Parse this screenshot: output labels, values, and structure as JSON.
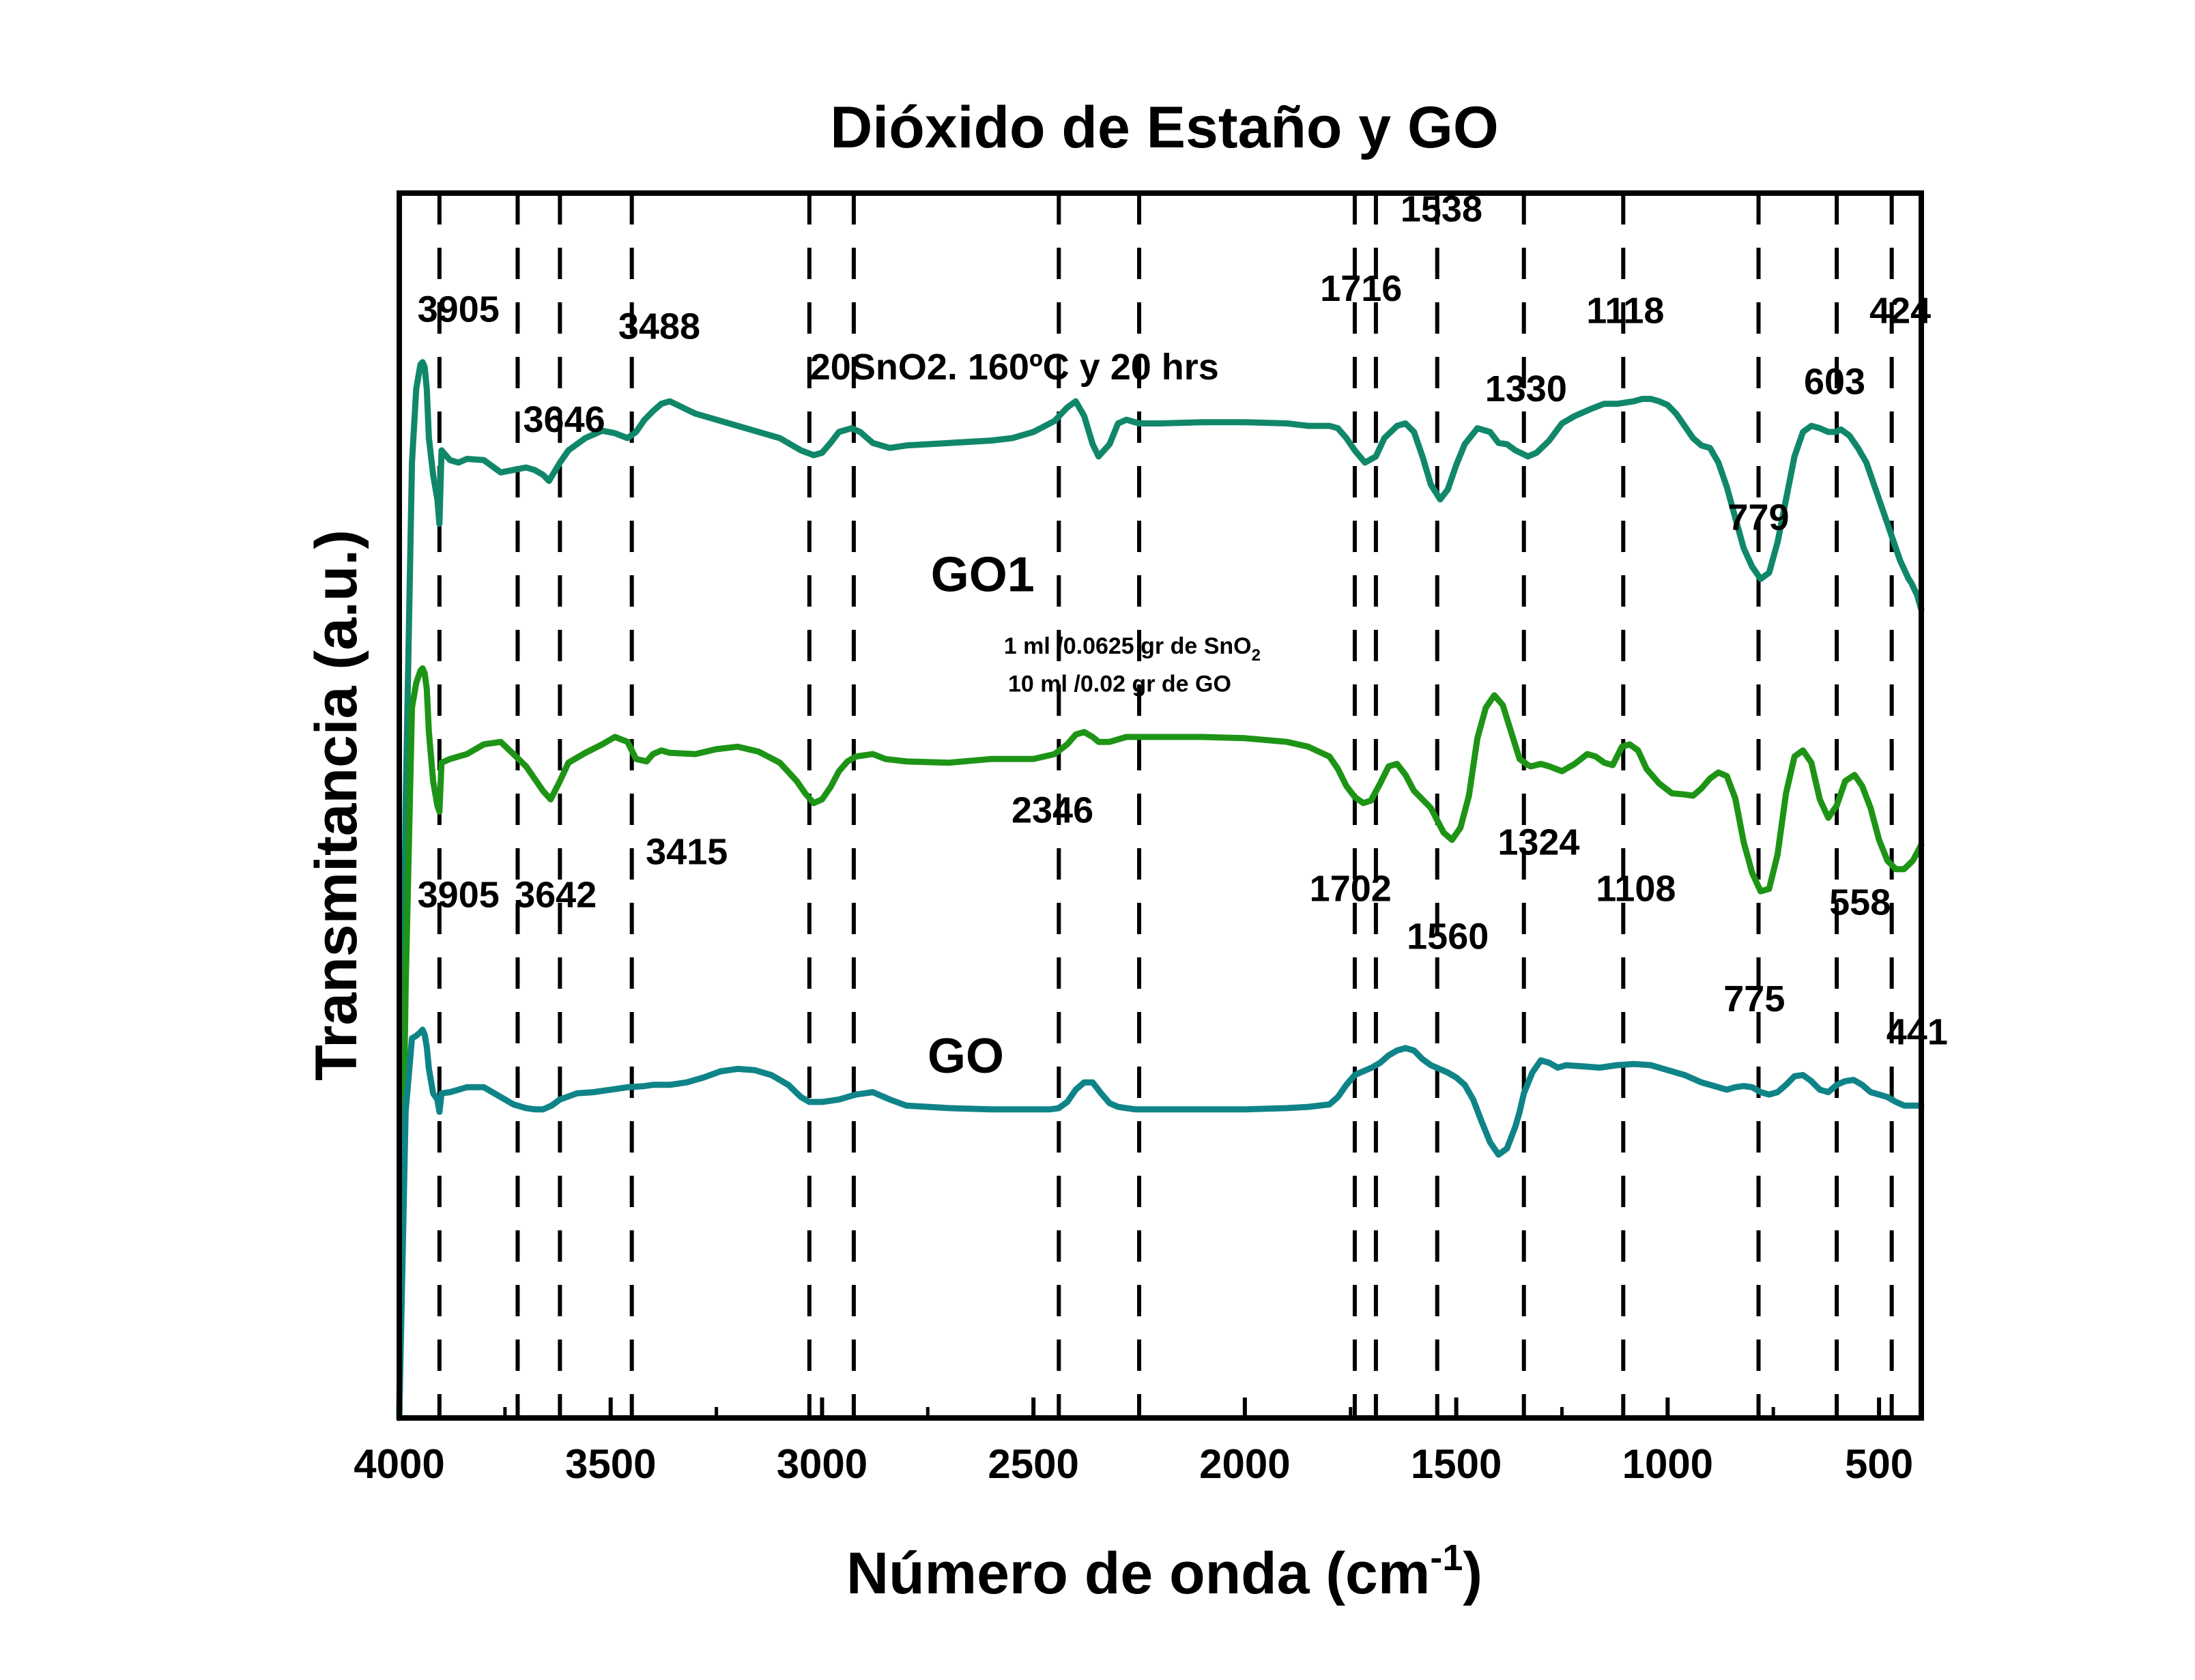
{
  "chart_data": {
    "type": "line",
    "title": "Dióxido de Estaño y GO",
    "xlabel_main": "Número de onda (cm",
    "xlabel_sup": "-1",
    "xlabel_end": ")",
    "ylabel": "Transmitancia (a.u.)",
    "xlim": [
      4000,
      400
    ],
    "x_reversed": true,
    "xticks": [
      4000,
      3500,
      3000,
      2500,
      2000,
      1500,
      1000,
      500
    ],
    "ylim": [
      0,
      10
    ],
    "y_ticks_shown": false,
    "grid": false,
    "colors": {
      "top": "#11876a",
      "middle": "#1e9416",
      "bottom": "#0f8488",
      "axis": "#000000"
    },
    "series": [
      {
        "name": "20SnO2. 160ºC y 20 hrs",
        "x": [
          4000,
          3985,
          3970,
          3960,
          3950,
          3945,
          3940,
          3935,
          3930,
          3920,
          3910,
          3905,
          3900,
          3880,
          3860,
          3840,
          3800,
          3760,
          3730,
          3700,
          3680,
          3660,
          3646,
          3620,
          3600,
          3560,
          3520,
          3490,
          3460,
          3440,
          3420,
          3400,
          3380,
          3360,
          3300,
          3200,
          3100,
          3050,
          3020,
          3000,
          2980,
          2960,
          2930,
          2910,
          2880,
          2840,
          2800,
          2700,
          2600,
          2550,
          2500,
          2450,
          2420,
          2400,
          2380,
          2360,
          2346,
          2320,
          2300,
          2280,
          2250,
          2200,
          2100,
          2000,
          1900,
          1850,
          1800,
          1780,
          1760,
          1740,
          1716,
          1690,
          1670,
          1640,
          1620,
          1600,
          1580,
          1560,
          1538,
          1520,
          1500,
          1480,
          1450,
          1420,
          1400,
          1380,
          1360,
          1330,
          1310,
          1280,
          1250,
          1220,
          1180,
          1150,
          1118,
          1080,
          1060,
          1040,
          1020,
          1000,
          980,
          960,
          940,
          920,
          900,
          880,
          860,
          840,
          820,
          800,
          780,
          760,
          740,
          720,
          700,
          680,
          660,
          640,
          620,
          603,
          590,
          570,
          550,
          530,
          510,
          490,
          470,
          450,
          430,
          424,
          410,
          400
        ],
        "y": [
          0.0,
          5.0,
          7.8,
          8.4,
          8.6,
          8.62,
          8.58,
          8.4,
          8.0,
          7.7,
          7.5,
          7.3,
          7.9,
          7.82,
          7.8,
          7.83,
          7.82,
          7.72,
          7.74,
          7.76,
          7.74,
          7.7,
          7.65,
          7.8,
          7.9,
          8.0,
          8.06,
          8.04,
          8.0,
          8.05,
          8.15,
          8.22,
          8.28,
          8.3,
          8.2,
          8.1,
          8.0,
          7.9,
          7.86,
          7.88,
          7.96,
          8.05,
          8.08,
          8.05,
          7.96,
          7.92,
          7.94,
          7.96,
          7.98,
          8.0,
          8.05,
          8.14,
          8.25,
          8.3,
          8.18,
          7.95,
          7.85,
          7.95,
          8.12,
          8.15,
          8.12,
          8.12,
          8.13,
          8.13,
          8.12,
          8.1,
          8.1,
          8.08,
          8.0,
          7.9,
          7.8,
          7.85,
          8.0,
          8.1,
          8.12,
          8.05,
          7.85,
          7.62,
          7.5,
          7.58,
          7.78,
          7.95,
          8.08,
          8.05,
          7.96,
          7.95,
          7.9,
          7.85,
          7.88,
          7.98,
          8.12,
          8.18,
          8.24,
          8.28,
          8.28,
          8.3,
          8.32,
          8.32,
          8.3,
          8.27,
          8.2,
          8.1,
          8.0,
          7.94,
          7.92,
          7.8,
          7.6,
          7.35,
          7.1,
          6.95,
          6.85,
          6.9,
          7.15,
          7.5,
          7.85,
          8.05,
          8.1,
          8.08,
          8.05,
          8.05,
          8.07,
          8.02,
          7.92,
          7.8,
          7.6,
          7.4,
          7.2,
          7.0,
          6.85,
          6.82,
          6.72,
          6.6
        ]
      },
      {
        "name": "GO1",
        "x": [
          4000,
          3985,
          3970,
          3960,
          3950,
          3945,
          3940,
          3935,
          3930,
          3920,
          3910,
          3905,
          3900,
          3880,
          3860,
          3840,
          3800,
          3760,
          3730,
          3700,
          3680,
          3660,
          3642,
          3620,
          3600,
          3560,
          3520,
          3490,
          3460,
          3440,
          3415,
          3400,
          3380,
          3360,
          3300,
          3250,
          3200,
          3150,
          3100,
          3060,
          3040,
          3020,
          3000,
          2980,
          2960,
          2940,
          2920,
          2880,
          2850,
          2800,
          2700,
          2600,
          2500,
          2450,
          2420,
          2400,
          2380,
          2360,
          2346,
          2320,
          2300,
          2280,
          2250,
          2200,
          2100,
          2000,
          1900,
          1850,
          1800,
          1780,
          1760,
          1740,
          1720,
          1702,
          1680,
          1660,
          1640,
          1620,
          1600,
          1580,
          1560,
          1545,
          1530,
          1510,
          1490,
          1470,
          1450,
          1430,
          1410,
          1390,
          1370,
          1350,
          1330,
          1324,
          1300,
          1280,
          1250,
          1220,
          1190,
          1170,
          1150,
          1130,
          1108,
          1090,
          1070,
          1050,
          1020,
          990,
          960,
          940,
          920,
          900,
          880,
          860,
          840,
          820,
          800,
          780,
          760,
          740,
          720,
          700,
          680,
          660,
          640,
          620,
          600,
          580,
          558,
          540,
          520,
          500,
          480,
          460,
          441,
          420,
          400
        ],
        "y": [
          0.0,
          3.5,
          5.8,
          6.0,
          6.1,
          6.12,
          6.08,
          5.95,
          5.6,
          5.2,
          5.0,
          4.95,
          5.35,
          5.38,
          5.4,
          5.42,
          5.5,
          5.52,
          5.42,
          5.32,
          5.22,
          5.12,
          5.05,
          5.2,
          5.35,
          5.43,
          5.5,
          5.56,
          5.52,
          5.38,
          5.36,
          5.42,
          5.45,
          5.43,
          5.42,
          5.46,
          5.48,
          5.44,
          5.35,
          5.2,
          5.1,
          5.02,
          5.05,
          5.15,
          5.28,
          5.36,
          5.4,
          5.42,
          5.38,
          5.36,
          5.35,
          5.38,
          5.38,
          5.42,
          5.5,
          5.58,
          5.6,
          5.56,
          5.52,
          5.52,
          5.54,
          5.56,
          5.56,
          5.56,
          5.56,
          5.55,
          5.52,
          5.48,
          5.4,
          5.3,
          5.16,
          5.07,
          5.02,
          5.04,
          5.18,
          5.32,
          5.34,
          5.25,
          5.12,
          5.05,
          4.98,
          4.88,
          4.78,
          4.72,
          4.82,
          5.08,
          5.55,
          5.8,
          5.9,
          5.82,
          5.6,
          5.38,
          5.33,
          5.32,
          5.34,
          5.32,
          5.28,
          5.34,
          5.42,
          5.4,
          5.35,
          5.33,
          5.48,
          5.5,
          5.45,
          5.3,
          5.18,
          5.1,
          5.09,
          5.08,
          5.14,
          5.22,
          5.27,
          5.24,
          5.06,
          4.7,
          4.45,
          4.3,
          4.32,
          4.6,
          5.1,
          5.4,
          5.45,
          5.35,
          5.05,
          4.9,
          5.0,
          5.2,
          5.25,
          5.16,
          4.98,
          4.72,
          4.55,
          4.48,
          4.48,
          4.55,
          4.68
        ]
      },
      {
        "name": "GO",
        "x": [
          4000,
          3985,
          3970,
          3960,
          3950,
          3945,
          3940,
          3935,
          3930,
          3920,
          3910,
          3905,
          3900,
          3880,
          3860,
          3840,
          3800,
          3760,
          3730,
          3700,
          3680,
          3660,
          3640,
          3620,
          3580,
          3540,
          3500,
          3460,
          3420,
          3400,
          3360,
          3320,
          3280,
          3240,
          3200,
          3160,
          3120,
          3080,
          3050,
          3030,
          3000,
          2960,
          2920,
          2880,
          2840,
          2800,
          2700,
          2600,
          2500,
          2460,
          2440,
          2420,
          2400,
          2380,
          2360,
          2340,
          2320,
          2300,
          2280,
          2260,
          2240,
          2200,
          2100,
          2000,
          1900,
          1850,
          1800,
          1780,
          1760,
          1740,
          1720,
          1700,
          1680,
          1660,
          1640,
          1620,
          1600,
          1580,
          1560,
          1540,
          1520,
          1500,
          1480,
          1460,
          1440,
          1420,
          1400,
          1380,
          1360,
          1350,
          1340,
          1320,
          1300,
          1280,
          1260,
          1240,
          1200,
          1160,
          1120,
          1080,
          1040,
          1000,
          960,
          920,
          880,
          860,
          840,
          820,
          800,
          780,
          760,
          740,
          720,
          700,
          680,
          660,
          640,
          620,
          600,
          580,
          560,
          540,
          520,
          500,
          480,
          460,
          440,
          420,
          400
        ],
        "y": [
          0.0,
          2.5,
          3.1,
          3.12,
          3.15,
          3.17,
          3.13,
          3.03,
          2.85,
          2.65,
          2.6,
          2.5,
          2.65,
          2.66,
          2.68,
          2.7,
          2.7,
          2.62,
          2.56,
          2.53,
          2.52,
          2.52,
          2.55,
          2.6,
          2.65,
          2.66,
          2.68,
          2.7,
          2.71,
          2.72,
          2.72,
          2.74,
          2.78,
          2.83,
          2.85,
          2.84,
          2.8,
          2.72,
          2.62,
          2.58,
          2.58,
          2.6,
          2.64,
          2.66,
          2.6,
          2.55,
          2.53,
          2.52,
          2.52,
          2.52,
          2.53,
          2.58,
          2.68,
          2.74,
          2.74,
          2.65,
          2.57,
          2.54,
          2.53,
          2.52,
          2.52,
          2.52,
          2.52,
          2.52,
          2.53,
          2.54,
          2.56,
          2.62,
          2.72,
          2.8,
          2.83,
          2.86,
          2.9,
          2.96,
          3.0,
          3.02,
          3.0,
          2.93,
          2.88,
          2.85,
          2.82,
          2.78,
          2.72,
          2.6,
          2.42,
          2.25,
          2.15,
          2.2,
          2.38,
          2.5,
          2.65,
          2.82,
          2.92,
          2.9,
          2.86,
          2.88,
          2.87,
          2.86,
          2.88,
          2.89,
          2.88,
          2.84,
          2.8,
          2.74,
          2.7,
          2.68,
          2.7,
          2.71,
          2.7,
          2.66,
          2.64,
          2.66,
          2.72,
          2.79,
          2.8,
          2.75,
          2.68,
          2.66,
          2.72,
          2.75,
          2.76,
          2.72,
          2.66,
          2.64,
          2.62,
          2.58,
          2.55,
          2.55,
          2.55
        ]
      }
    ],
    "reference_lines": [
      3905,
      3720,
      3620,
      3450,
      3030,
      2925,
      2440,
      2250,
      1740,
      1690,
      1545,
      1340,
      1105,
      785,
      600,
      470
    ],
    "annotations": [
      {
        "text": "3905",
        "x": 3860,
        "level": 8.95
      },
      {
        "text": "3646",
        "x": 3610,
        "level": 8.05
      },
      {
        "text": "3488",
        "x": 3385,
        "level": 8.81
      },
      {
        "text": "20SnO2. 160ºC y 20 hrs",
        "x": 2545,
        "level": 8.48
      },
      {
        "text": "1716",
        "x": 1725,
        "level": 9.12
      },
      {
        "text": "1538",
        "x": 1535,
        "level": 9.77
      },
      {
        "text": "1330",
        "x": 1335,
        "level": 8.3
      },
      {
        "text": "1118",
        "x": 1100,
        "level": 8.94
      },
      {
        "text": "603",
        "x": 605,
        "level": 8.36
      },
      {
        "text": "424",
        "x": 450,
        "level": 8.94
      },
      {
        "text": "779",
        "x": 785,
        "level": 7.25
      },
      {
        "text": "3905",
        "x": 3860,
        "level": 4.17
      },
      {
        "text": "3642",
        "x": 3630,
        "level": 4.17
      },
      {
        "text": "3415",
        "x": 3320,
        "level": 4.52
      },
      {
        "text": "2346",
        "x": 2455,
        "level": 4.86
      },
      {
        "text": "1702",
        "x": 1750,
        "level": 4.22
      },
      {
        "text": "1560",
        "x": 1520,
        "level": 3.83
      },
      {
        "text": "1324",
        "x": 1305,
        "level": 4.6
      },
      {
        "text": "1108",
        "x": 1075,
        "level": 4.22
      },
      {
        "text": "558",
        "x": 545,
        "level": 4.11
      },
      {
        "text": "775",
        "x": 795,
        "level": 3.32
      },
      {
        "text": "441",
        "x": 410,
        "level": 3.05
      }
    ],
    "series_labels": [
      {
        "text": "GO1",
        "x": 2620,
        "level": 6.75
      },
      {
        "text": "GO",
        "x": 2660,
        "level": 2.82
      }
    ],
    "sample_notes": [
      {
        "prefix": "1 ml /0.0625 gr de SnO",
        "subscript": "2",
        "x": 2570,
        "level": 6.24
      },
      {
        "prefix": "10 ml /0.02 gr de GO",
        "subscript": "",
        "x": 2560,
        "level": 5.93
      }
    ]
  }
}
